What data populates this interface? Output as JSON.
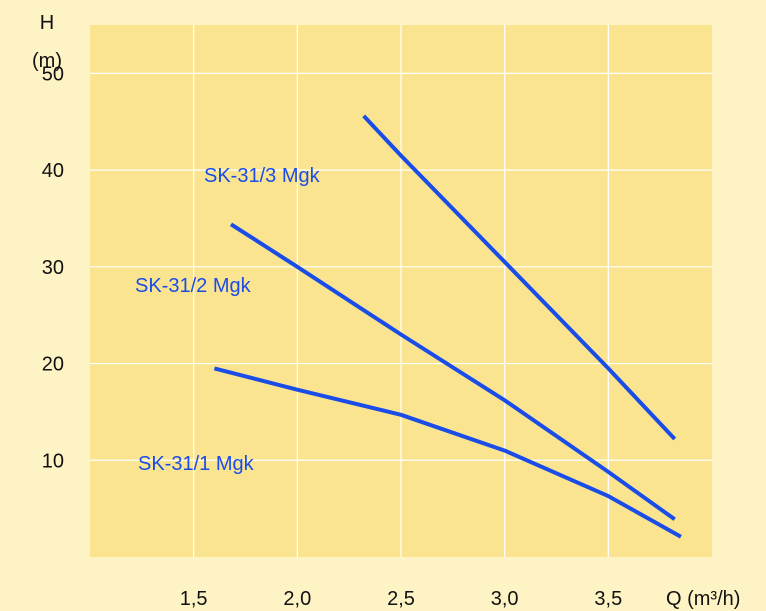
{
  "colors": {
    "background": "#fdf3c4",
    "plot_background": "#fbe48f",
    "grid": "#ffffff",
    "series": "#1a4de8"
  },
  "chart_data": {
    "type": "line",
    "title": "",
    "xlabel": "Q (m³/h)",
    "ylabel_line1": "H",
    "ylabel_line2": "(m)",
    "xlim": [
      1.0,
      4.0
    ],
    "ylim": [
      0,
      55
    ],
    "x_ticks": [
      1.5,
      2.0,
      2.5,
      3.0,
      3.5
    ],
    "x_tick_labels": [
      "1,5",
      "2,0",
      "2,5",
      "3,0",
      "3,5"
    ],
    "y_ticks": [
      10,
      20,
      30,
      40,
      50
    ],
    "y_tick_labels": [
      "10",
      "20",
      "30",
      "40",
      "50"
    ],
    "grid": true,
    "legend": "inline labels",
    "series": [
      {
        "name": "SK-31/3 Mgk",
        "x": [
          2.32,
          2.5,
          3.0,
          3.5,
          3.82
        ],
        "y": [
          45.6,
          41.5,
          30.5,
          19.5,
          12.2
        ]
      },
      {
        "name": "SK-31/2 Mgk",
        "x": [
          1.68,
          2.0,
          2.5,
          3.0,
          3.5,
          3.82
        ],
        "y": [
          34.4,
          30.0,
          23.0,
          16.2,
          8.8,
          3.9
        ]
      },
      {
        "name": "SK-31/1 Mgk",
        "x": [
          1.6,
          2.0,
          2.5,
          3.0,
          3.5,
          3.85
        ],
        "y": [
          19.5,
          17.3,
          14.7,
          11.0,
          6.3,
          2.1
        ]
      }
    ]
  }
}
